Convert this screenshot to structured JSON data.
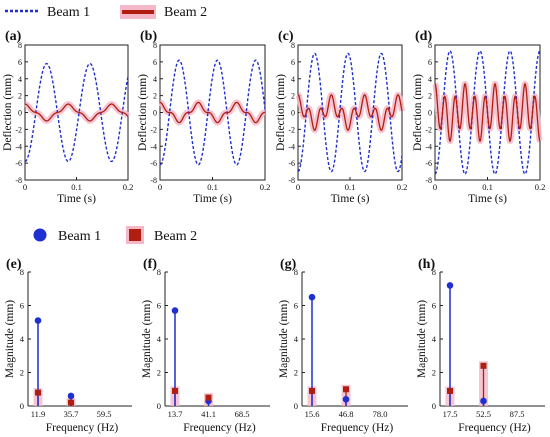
{
  "legend": {
    "beam1": "Beam 1",
    "beam2": "Beam 2"
  },
  "colors": {
    "beam1": "#1f2fd0",
    "beam2": "#b01e12",
    "beam2_band": "#f4b8c8"
  },
  "time_panels": {
    "xlabel": "Time  (s)",
    "ylabel": "Deflection  (mm)",
    "x_ticks": [
      "0",
      "0.1",
      "0.2"
    ],
    "y_ticks": [
      "8",
      "6",
      "4",
      "2",
      "0",
      "-2",
      "-4",
      "-6",
      "-8"
    ]
  },
  "freq_panels": {
    "xlabel": "Frequency  (Hz)",
    "ylabel": "Magnitude  (mm)",
    "y_ticks": [
      "0",
      "2",
      "4",
      "6",
      "8"
    ]
  },
  "chart_data": [
    {
      "type": "line",
      "panel": "(a)",
      "xlabel": "Time  (s)",
      "ylabel": "Deflection  (mm)",
      "xlim": [
        0,
        0.2
      ],
      "ylim": [
        -8,
        8
      ],
      "series": [
        {
          "name": "Beam 1",
          "kind": "sine",
          "amplitude": 5.8,
          "frequency_hz": 11.9,
          "phase": -1.57,
          "time_range": [
            0,
            0.2
          ]
        },
        {
          "name": "Beam 2",
          "kind": "sine",
          "amplitude": 0.8,
          "frequency_hz": 11.9,
          "phase": 1.57,
          "second_amplitude": 0.2,
          "second_frequency_hz": 35.7,
          "time_range": [
            0,
            0.2
          ]
        }
      ]
    },
    {
      "type": "line",
      "panel": "(b)",
      "xlabel": "Time  (s)",
      "ylabel": "Deflection  (mm)",
      "xlim": [
        0,
        0.2
      ],
      "ylim": [
        -8,
        8
      ],
      "series": [
        {
          "name": "Beam 1",
          "kind": "sine",
          "amplitude": 6.2,
          "frequency_hz": 13.7,
          "phase": -1.57,
          "time_range": [
            0,
            0.2
          ]
        },
        {
          "name": "Beam 2",
          "kind": "sine",
          "amplitude": 0.9,
          "frequency_hz": 13.7,
          "phase": 1.57,
          "second_amplitude": 0.3,
          "second_frequency_hz": 41.1,
          "time_range": [
            0,
            0.2
          ]
        }
      ]
    },
    {
      "type": "line",
      "panel": "(c)",
      "xlabel": "Time  (s)",
      "ylabel": "Deflection  (mm)",
      "xlim": [
        0,
        0.2
      ],
      "ylim": [
        -8,
        8
      ],
      "series": [
        {
          "name": "Beam 1",
          "kind": "sine",
          "amplitude": 7.0,
          "frequency_hz": 15.6,
          "phase": -1.57,
          "time_range": [
            0,
            0.2
          ]
        },
        {
          "name": "Beam 2",
          "kind": "sine",
          "amplitude": 1.1,
          "frequency_hz": 15.6,
          "phase": 1.57,
          "second_amplitude": 1.0,
          "second_frequency_hz": 46.8,
          "time_range": [
            0,
            0.2
          ]
        }
      ]
    },
    {
      "type": "line",
      "panel": "(d)",
      "xlabel": "Time  (s)",
      "ylabel": "Deflection  (mm)",
      "xlim": [
        0,
        0.2
      ],
      "ylim": [
        -8,
        8
      ],
      "series": [
        {
          "name": "Beam 1",
          "kind": "sine",
          "amplitude": 7.3,
          "frequency_hz": 17.5,
          "phase": -1.57,
          "time_range": [
            0,
            0.2
          ]
        },
        {
          "name": "Beam 2",
          "kind": "sine",
          "amplitude": 1.0,
          "frequency_hz": 17.5,
          "phase": 1.57,
          "second_amplitude": 2.4,
          "second_frequency_hz": 52.5,
          "time_range": [
            0,
            0.2
          ]
        }
      ]
    },
    {
      "type": "scatter",
      "panel": "(e)",
      "xlabel": "Frequency  (Hz)",
      "ylabel": "Magnitude  (mm)",
      "ylim": [
        0,
        8
      ],
      "x_ticks": [
        "11.9",
        "35.7",
        "59.5"
      ],
      "x_values": [
        11.9,
        35.7,
        59.5
      ],
      "series": [
        {
          "name": "Beam 1",
          "x": [
            11.9,
            35.7
          ],
          "y": [
            5.1,
            0.6
          ]
        },
        {
          "name": "Beam 2",
          "x": [
            11.9,
            35.7
          ],
          "y": [
            0.8,
            0.2
          ]
        }
      ]
    },
    {
      "type": "scatter",
      "panel": "(f)",
      "xlabel": "Frequency  (Hz)",
      "ylabel": "Magnitude  (mm)",
      "ylim": [
        0,
        8
      ],
      "x_ticks": [
        "13.7",
        "41.1",
        "68.5"
      ],
      "x_values": [
        13.7,
        41.1,
        68.5
      ],
      "series": [
        {
          "name": "Beam 1",
          "x": [
            13.7,
            41.1
          ],
          "y": [
            5.7,
            0.3
          ]
        },
        {
          "name": "Beam 2",
          "x": [
            13.7,
            41.1
          ],
          "y": [
            0.9,
            0.5
          ]
        }
      ]
    },
    {
      "type": "scatter",
      "panel": "(g)",
      "xlabel": "Frequency  (Hz)",
      "ylabel": "Magnitude  (mm)",
      "ylim": [
        0,
        8
      ],
      "x_ticks": [
        "15.6",
        "46.8",
        "78.0"
      ],
      "x_values": [
        15.6,
        46.8,
        78.0
      ],
      "series": [
        {
          "name": "Beam 1",
          "x": [
            15.6,
            46.8
          ],
          "y": [
            6.5,
            0.4
          ]
        },
        {
          "name": "Beam 2",
          "x": [
            15.6,
            46.8
          ],
          "y": [
            0.9,
            1.0
          ]
        }
      ]
    },
    {
      "type": "scatter",
      "panel": "(h)",
      "xlabel": "Frequency  (Hz)",
      "ylabel": "Magnitude  (mm)",
      "ylim": [
        0,
        8
      ],
      "x_ticks": [
        "17.5",
        "52.5",
        "87.5"
      ],
      "x_values": [
        17.5,
        52.5,
        87.5
      ],
      "series": [
        {
          "name": "Beam 1",
          "x": [
            17.5,
            52.5
          ],
          "y": [
            7.2,
            0.3
          ]
        },
        {
          "name": "Beam 2",
          "x": [
            17.5,
            52.5
          ],
          "y": [
            0.9,
            2.4
          ]
        }
      ]
    }
  ]
}
